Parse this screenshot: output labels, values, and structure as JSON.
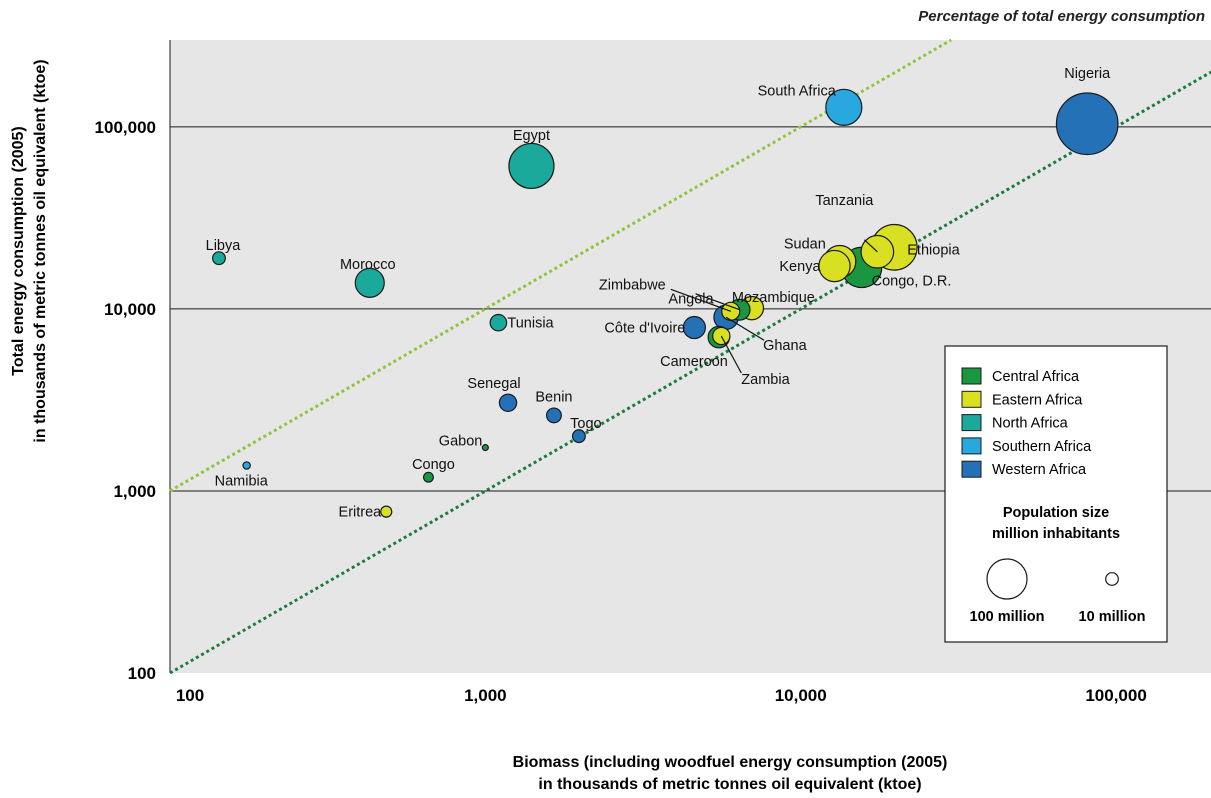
{
  "corner_note": "Percentage of total energy consumption",
  "chart_data": {
    "type": "scatter",
    "xlabel_line1": "Biomass (including woodfuel energy consumption (2005)",
    "xlabel_line2": "in thousands of metric tonnes oil equivalent (ktoe)",
    "ylabel_line1": "Total energy consumption (2005)",
    "ylabel_line2": "in thousands of metric tonnes oil equivalent (ktoe)",
    "x_scale": "log",
    "y_scale": "log",
    "xlim": [
      100,
      200000
    ],
    "ylim": [
      100,
      300000
    ],
    "x_ticks": [
      {
        "value": 100,
        "label": "100"
      },
      {
        "value": 1000,
        "label": "1,000"
      },
      {
        "value": 10000,
        "label": "10,000"
      },
      {
        "value": 100000,
        "label": "100,000"
      }
    ],
    "y_ticks": [
      {
        "value": 100,
        "label": "100"
      },
      {
        "value": 1000,
        "label": "1,000"
      },
      {
        "value": 10000,
        "label": "10,000"
      },
      {
        "value": 100000,
        "label": "100,000"
      }
    ],
    "grid": "horizontal",
    "reference_lines": [
      {
        "ratio_y_over_x": 10,
        "color": "#8dc63f"
      },
      {
        "ratio_y_over_x": 1,
        "color": "#1f7a3d"
      }
    ],
    "regions": [
      {
        "name": "Central Africa",
        "color": "#1a9641"
      },
      {
        "name": "Eastern Africa",
        "color": "#d9e021"
      },
      {
        "name": "North Africa",
        "color": "#1aa99a"
      },
      {
        "name": "Southern Africa",
        "color": "#29a8e0"
      },
      {
        "name": "Western Africa",
        "color": "#2471b8"
      }
    ],
    "points": [
      {
        "country": "Nigeria",
        "region": "Western Africa",
        "x": 81000,
        "y": 104000,
        "population": 140
      },
      {
        "country": "South Africa",
        "region": "Southern Africa",
        "x": 13700,
        "y": 128000,
        "population": 48
      },
      {
        "country": "Egypt",
        "region": "North Africa",
        "x": 1400,
        "y": 61000,
        "population": 75
      },
      {
        "country": "Libya",
        "region": "North Africa",
        "x": 143,
        "y": 19000,
        "population": 6
      },
      {
        "country": "Morocco",
        "region": "North Africa",
        "x": 430,
        "y": 13900,
        "population": 31
      },
      {
        "country": "Tunisia",
        "region": "North Africa",
        "x": 1100,
        "y": 8400,
        "population": 10
      },
      {
        "country": "Ethiopia",
        "region": "Eastern Africa",
        "x": 19800,
        "y": 21800,
        "population": 77
      },
      {
        "country": "Tanzania",
        "region": "Eastern Africa",
        "x": 17500,
        "y": 20600,
        "population": 39
      },
      {
        "country": "Sudan",
        "region": "Eastern Africa",
        "x": 13300,
        "y": 18200,
        "population": 38
      },
      {
        "country": "Kenya",
        "region": "Eastern Africa",
        "x": 12800,
        "y": 17200,
        "population": 36
      },
      {
        "country": "Congo, D.R.",
        "region": "Central Africa",
        "x": 15600,
        "y": 16900,
        "population": 60
      },
      {
        "country": "Mozambique",
        "region": "Eastern Africa",
        "x": 7000,
        "y": 10100,
        "population": 20
      },
      {
        "country": "Angola",
        "region": "Central Africa",
        "x": 6400,
        "y": 9900,
        "population": 16
      },
      {
        "country": "Zimbabwe",
        "region": "Eastern Africa",
        "x": 6000,
        "y": 9700,
        "population": 12
      },
      {
        "country": "Ghana",
        "region": "Western Africa",
        "x": 5800,
        "y": 9000,
        "population": 22
      },
      {
        "country": "Côte d'Ivoire",
        "region": "Western Africa",
        "x": 4600,
        "y": 7900,
        "population": 18
      },
      {
        "country": "Cameroon",
        "region": "Central Africa",
        "x": 5500,
        "y": 7000,
        "population": 17
      },
      {
        "country": "Zambia",
        "region": "Eastern Africa",
        "x": 5600,
        "y": 7100,
        "population": 11
      },
      {
        "country": "Senegal",
        "region": "Western Africa",
        "x": 1180,
        "y": 3050,
        "population": 11
      },
      {
        "country": "Benin",
        "region": "Western Africa",
        "x": 1650,
        "y": 2600,
        "population": 8
      },
      {
        "country": "Togo",
        "region": "Western Africa",
        "x": 1980,
        "y": 2000,
        "population": 6
      },
      {
        "country": "Gabon",
        "region": "Central Africa",
        "x": 1000,
        "y": 1730,
        "population": 1.3
      },
      {
        "country": "Congo",
        "region": "Central Africa",
        "x": 660,
        "y": 1190,
        "population": 3.5
      },
      {
        "country": "Namibia",
        "region": "Southern Africa",
        "x": 175,
        "y": 1380,
        "population": 2
      },
      {
        "country": "Eritrea",
        "region": "Eastern Africa",
        "x": 485,
        "y": 770,
        "population": 4.5
      }
    ],
    "legend": {
      "placement": "bottom-right",
      "size_title_line1": "Population size",
      "size_title_line2": "million inhabitants",
      "size_keys": [
        {
          "population": 100,
          "label": "100 million"
        },
        {
          "population": 10,
          "label": "10 million"
        }
      ]
    }
  }
}
